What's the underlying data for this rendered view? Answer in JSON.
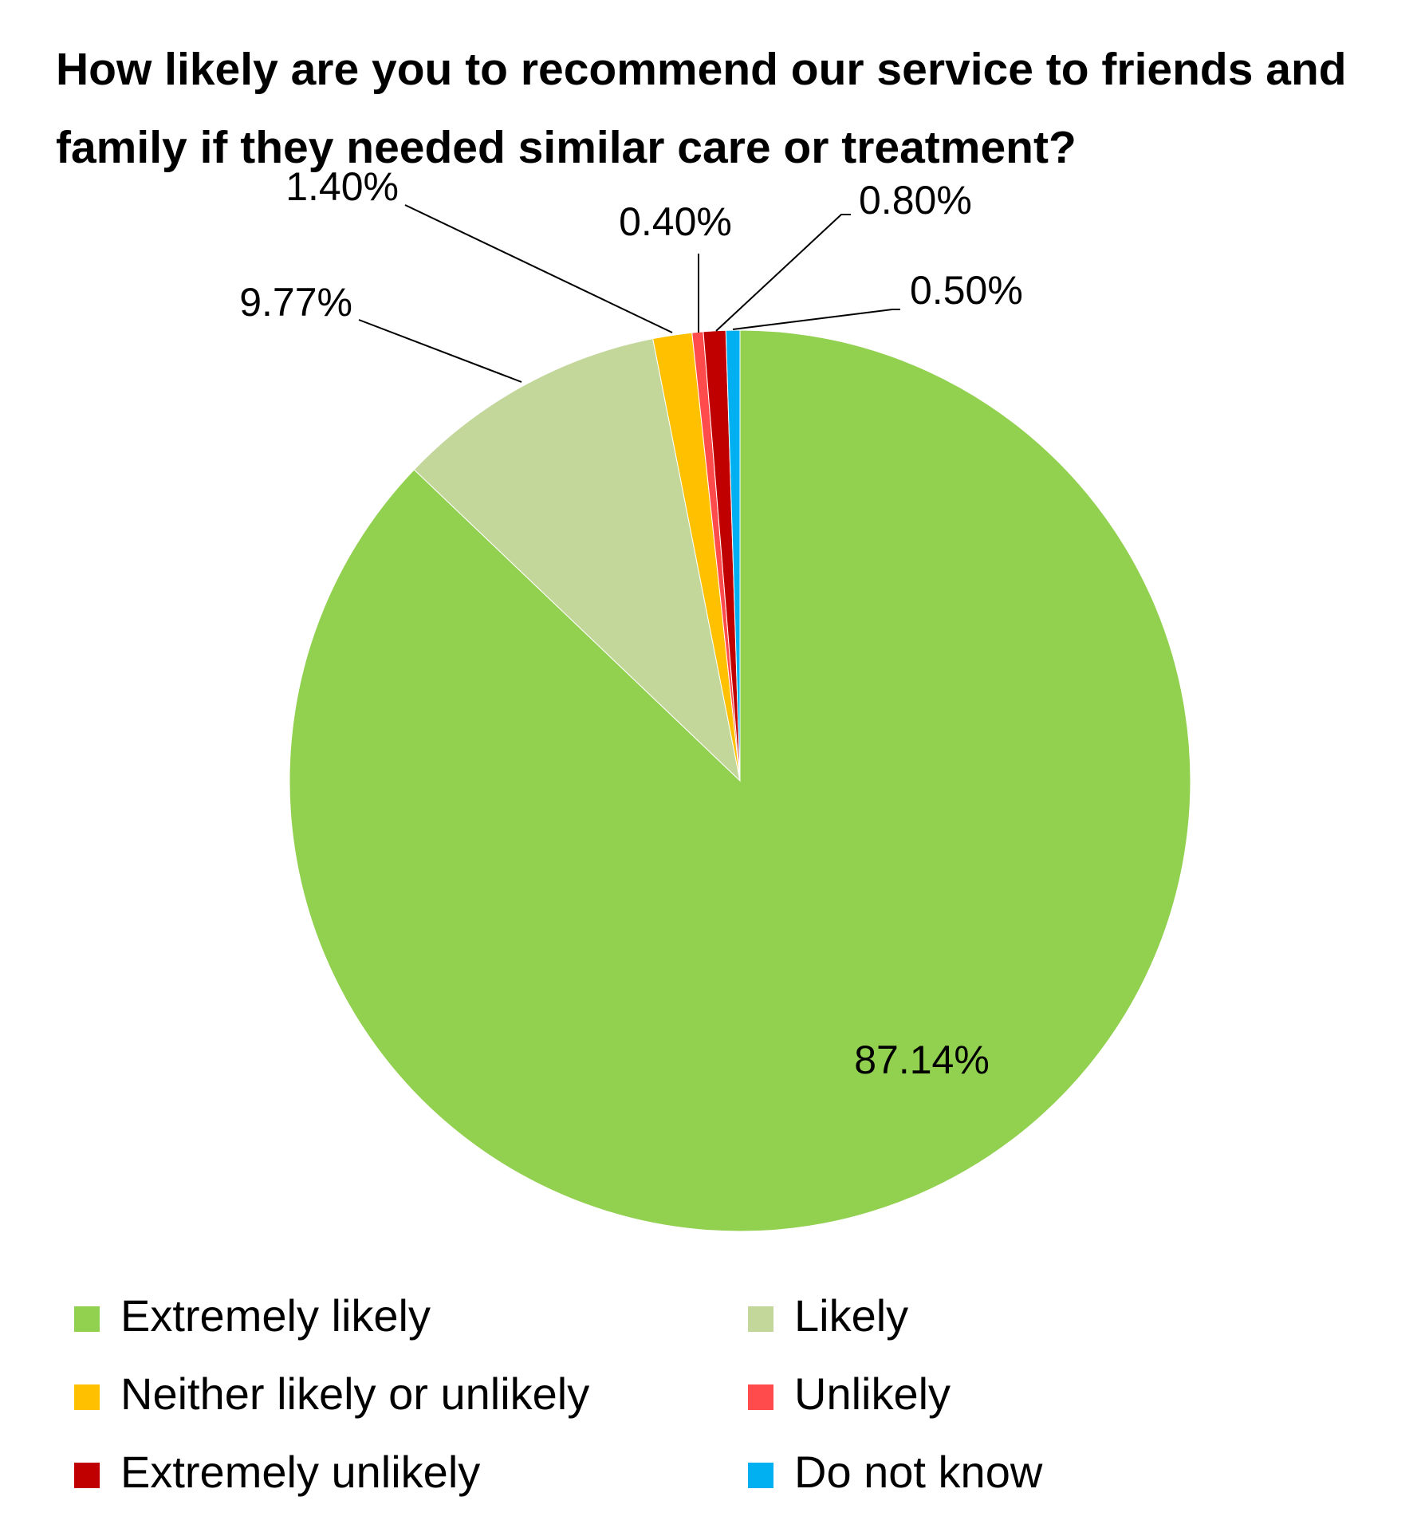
{
  "chart_data": {
    "type": "pie",
    "title": "How likely are you to recommend our service to friends and family if they needed similar care or treatment?",
    "categories": [
      "Extremely likely",
      "Likely",
      "Neither likely or unlikely",
      "Unlikely",
      "Extremely unlikely",
      "Do not know"
    ],
    "values": [
      87.14,
      9.77,
      1.4,
      0.4,
      0.8,
      0.5
    ],
    "value_labels": [
      "87.14%",
      "9.77%",
      "1.40%",
      "0.40%",
      "0.80%",
      "0.50%"
    ],
    "colors": [
      "#92d050",
      "#c4d79b",
      "#ffc000",
      "#ff4b4b",
      "#c00000",
      "#00b0f0"
    ],
    "legend": "bottom"
  }
}
